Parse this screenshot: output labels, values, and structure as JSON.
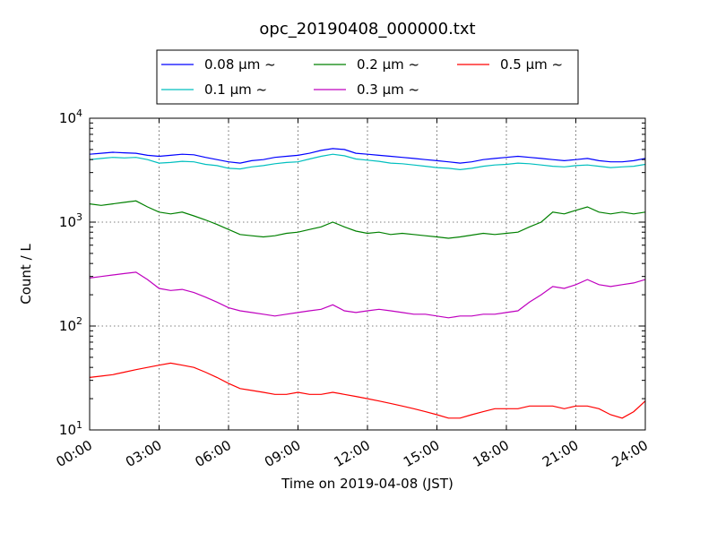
{
  "chart_data": {
    "type": "line",
    "title": "opc_20190408_000000.txt",
    "xlabel": "Time on 2019-04-08 (JST)",
    "ylabel": "Count / L",
    "yscale": "log",
    "xlim": [
      0,
      24
    ],
    "ylim": [
      10,
      10000
    ],
    "grid": true,
    "legend_position": "top-center",
    "x_ticks": [
      {
        "value": 0,
        "label": "00:00"
      },
      {
        "value": 3,
        "label": "03:00"
      },
      {
        "value": 6,
        "label": "06:00"
      },
      {
        "value": 9,
        "label": "09:00"
      },
      {
        "value": 12,
        "label": "12:00"
      },
      {
        "value": 15,
        "label": "15:00"
      },
      {
        "value": 18,
        "label": "18:00"
      },
      {
        "value": 21,
        "label": "21:00"
      },
      {
        "value": 24,
        "label": "24:00"
      }
    ],
    "y_ticks": [
      {
        "value": 10,
        "base": "10",
        "exp": "1"
      },
      {
        "value": 100,
        "base": "10",
        "exp": "2"
      },
      {
        "value": 1000,
        "base": "10",
        "exp": "3"
      },
      {
        "value": 10000,
        "base": "10",
        "exp": "4"
      }
    ],
    "x": [
      0,
      0.5,
      1,
      1.5,
      2,
      2.5,
      3,
      3.5,
      4,
      4.5,
      5,
      5.5,
      6,
      6.5,
      7,
      7.5,
      8,
      8.5,
      9,
      9.5,
      10,
      10.5,
      11,
      11.5,
      12,
      12.5,
      13,
      13.5,
      14,
      14.5,
      15,
      15.5,
      16,
      16.5,
      17,
      17.5,
      18,
      18.5,
      19,
      19.5,
      20,
      20.5,
      21,
      21.5,
      22,
      22.5,
      23,
      23.5,
      24
    ],
    "series": [
      {
        "name": "0.08 μm ~",
        "color": "#0000ff",
        "values": [
          4500,
          4600,
          4700,
          4650,
          4600,
          4400,
          4300,
          4400,
          4500,
          4450,
          4200,
          4000,
          3800,
          3700,
          3900,
          4000,
          4200,
          4300,
          4400,
          4600,
          4900,
          5100,
          5000,
          4600,
          4500,
          4400,
          4300,
          4200,
          4100,
          4000,
          3900,
          3800,
          3700,
          3800,
          4000,
          4100,
          4200,
          4300,
          4200,
          4100,
          4000,
          3900,
          4000,
          4100,
          3900,
          3800,
          3800,
          3900,
          4100
        ]
      },
      {
        "name": "0.1 μm ~",
        "color": "#00bfbf",
        "values": [
          4000,
          4100,
          4200,
          4150,
          4200,
          4000,
          3700,
          3750,
          3850,
          3800,
          3600,
          3500,
          3300,
          3250,
          3400,
          3500,
          3650,
          3750,
          3800,
          4050,
          4300,
          4500,
          4350,
          4050,
          3950,
          3850,
          3700,
          3650,
          3550,
          3450,
          3350,
          3300,
          3200,
          3300,
          3450,
          3550,
          3600,
          3700,
          3650,
          3550,
          3450,
          3400,
          3500,
          3550,
          3450,
          3350,
          3400,
          3450,
          3600
        ]
      },
      {
        "name": "0.2 μm ~",
        "color": "#008000",
        "values": [
          1500,
          1450,
          1500,
          1550,
          1600,
          1400,
          1250,
          1200,
          1250,
          1150,
          1050,
          950,
          850,
          760,
          740,
          720,
          740,
          780,
          800,
          850,
          900,
          1000,
          900,
          820,
          780,
          800,
          760,
          780,
          760,
          740,
          720,
          700,
          720,
          750,
          780,
          760,
          780,
          800,
          900,
          1000,
          1250,
          1200,
          1300,
          1400,
          1250,
          1200,
          1250,
          1200,
          1250
        ]
      },
      {
        "name": "0.3 μm ~",
        "color": "#bf00bf",
        "values": [
          290,
          300,
          310,
          320,
          330,
          280,
          230,
          220,
          225,
          210,
          190,
          170,
          150,
          140,
          135,
          130,
          125,
          130,
          135,
          140,
          145,
          160,
          140,
          135,
          140,
          145,
          140,
          135,
          130,
          130,
          125,
          120,
          125,
          125,
          130,
          130,
          135,
          140,
          170,
          200,
          240,
          230,
          250,
          280,
          250,
          240,
          250,
          260,
          280
        ]
      },
      {
        "name": "0.5 μm ~",
        "color": "#ff0000",
        "values": [
          32,
          33,
          34,
          36,
          38,
          40,
          42,
          44,
          42,
          40,
          36,
          32,
          28,
          25,
          24,
          23,
          22,
          22,
          23,
          22,
          22,
          23,
          22,
          21,
          20,
          19,
          18,
          17,
          16,
          15,
          14,
          13,
          13,
          14,
          15,
          16,
          16,
          16,
          17,
          17,
          17,
          16,
          17,
          17,
          16,
          14,
          13,
          15,
          19
        ]
      }
    ]
  }
}
